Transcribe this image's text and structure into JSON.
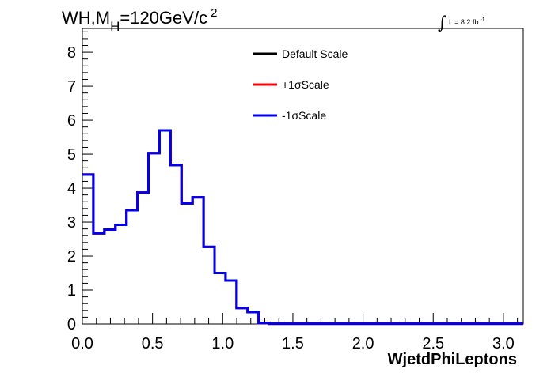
{
  "chart_data": {
    "type": "histogram",
    "title": "WH,M_H=120GeV/c^2",
    "title_parts": {
      "main": "WH,M",
      "sub": "H",
      "rest": "=120GeV/c",
      "sup": "2"
    },
    "luminosity": {
      "text": "L = 8.2 fb",
      "sup": "-1"
    },
    "xlabel": "WjetdPhiLeptons",
    "ylabel": "",
    "xlim": [
      0,
      3.1416
    ],
    "ylim": [
      0,
      8.7
    ],
    "xticks": [
      "0.0",
      "0.5",
      "1.0",
      "1.5",
      "2.0",
      "2.5",
      "3.0"
    ],
    "yticks": [
      "0",
      "1",
      "2",
      "3",
      "4",
      "5",
      "6",
      "7",
      "8"
    ],
    "bin_width": 0.0785,
    "legend": {
      "placement": "top-center"
    },
    "series": [
      {
        "name": "Default Scale",
        "color": "#000000",
        "values": [
          4.4,
          2.67,
          2.78,
          2.92,
          3.35,
          3.87,
          5.03,
          5.7,
          4.68,
          3.55,
          3.73,
          2.27,
          1.5,
          1.28,
          0.47,
          0.35,
          0.03,
          0.01,
          0.01,
          0.01,
          0.01,
          0.01,
          0.01,
          0.01,
          0.01,
          0.01,
          0.01,
          0.01,
          0.01,
          0.01,
          0.01,
          0.01,
          0.01,
          0.01,
          0.01,
          0.01,
          0.01,
          0.01,
          0.01,
          0.01
        ]
      },
      {
        "name": "+1σScale",
        "color": "#ff0000",
        "values": [
          4.4,
          2.67,
          2.78,
          2.92,
          3.35,
          3.87,
          5.03,
          5.7,
          4.68,
          3.55,
          3.73,
          2.27,
          1.5,
          1.28,
          0.47,
          0.35,
          0.03,
          0.01,
          0.01,
          0.01,
          0.01,
          0.01,
          0.01,
          0.01,
          0.01,
          0.01,
          0.01,
          0.01,
          0.01,
          0.01,
          0.01,
          0.01,
          0.01,
          0.01,
          0.01,
          0.01,
          0.01,
          0.01,
          0.01,
          0.01
        ]
      },
      {
        "name": "-1σScale",
        "color": "#0000ee",
        "values": [
          4.4,
          2.67,
          2.78,
          2.92,
          3.35,
          3.87,
          5.03,
          5.7,
          4.68,
          3.55,
          3.73,
          2.27,
          1.5,
          1.28,
          0.47,
          0.35,
          0.03,
          0.01,
          0.01,
          0.01,
          0.01,
          0.01,
          0.01,
          0.01,
          0.01,
          0.01,
          0.01,
          0.01,
          0.01,
          0.01,
          0.01,
          0.01,
          0.01,
          0.01,
          0.01,
          0.01,
          0.01,
          0.01,
          0.01,
          0.01
        ]
      }
    ]
  }
}
